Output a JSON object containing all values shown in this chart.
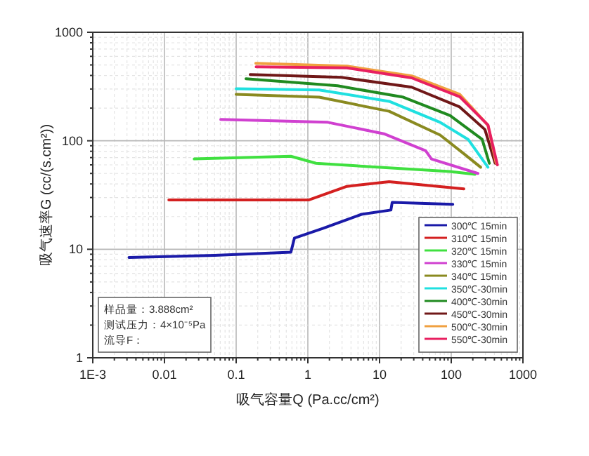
{
  "chart_data": {
    "type": "line",
    "xlabel": "吸气容量Q (Pa.cc/cm²)",
    "ylabel": "吸气速率G (cc/(s.cm²))",
    "log": "xy",
    "grid": true,
    "legend": "bottom right",
    "xlim": [
      0.001,
      1000
    ],
    "ylim": [
      1,
      1000
    ],
    "xticks": [
      {
        "value": 0.001,
        "label": "1E-3"
      },
      0.01,
      0.1,
      1,
      10,
      100,
      1000
    ],
    "yticks": [
      1,
      10,
      100,
      1000
    ],
    "annotations": [
      "样品量：3.888cm²",
      "测试压力：4×10⁻⁵Pa",
      "流导F："
    ],
    "series": [
      {
        "name": "300℃ 15min",
        "color": "#1a1aa8",
        "x": [
          0.0032,
          0.05,
          0.58,
          0.65,
          1.64,
          5.6,
          14.4,
          15,
          105
        ],
        "values": [
          8.4,
          8.8,
          9.4,
          12.7,
          15.6,
          21,
          23,
          27,
          26
        ]
      },
      {
        "name": "310℃ 15min",
        "color": "#d42020",
        "x": [
          0.0115,
          1.04,
          3.5,
          13.6,
          150
        ],
        "values": [
          28.5,
          28.5,
          38,
          42,
          36
        ]
      },
      {
        "name": "320℃ 15min",
        "color": "#40e040",
        "x": [
          0.026,
          0.58,
          1.3,
          96,
          215
        ],
        "values": [
          68,
          72,
          62,
          52,
          49
        ]
      },
      {
        "name": "330℃ 15min",
        "color": "#d040d0",
        "x": [
          0.061,
          1.9,
          11.5,
          44,
          53,
          236
        ],
        "values": [
          157,
          148,
          116,
          81,
          68,
          50
        ]
      },
      {
        "name": "340℃ 15min",
        "color": "#8a8a20",
        "x": [
          0.1,
          1.44,
          13.6,
          70,
          150,
          257
        ],
        "values": [
          268,
          252,
          187,
          113,
          76,
          57
        ]
      },
      {
        "name": "350℃-30min",
        "color": "#20e0e0",
        "x": [
          0.1,
          1.44,
          13.6,
          70,
          172,
          325
        ],
        "values": [
          302,
          294,
          231,
          148,
          103,
          57
        ]
      },
      {
        "name": "400℃-30min",
        "color": "#208a20",
        "x": [
          0.137,
          2.6,
          21.5,
          96,
          270,
          340
        ],
        "values": [
          373,
          321,
          252,
          171,
          103,
          62
        ]
      },
      {
        "name": "450℃-30min",
        "color": "#701818",
        "x": [
          0.157,
          2.95,
          28,
          131,
          295,
          410
        ],
        "values": [
          408,
          384,
          312,
          205,
          127,
          62
        ]
      },
      {
        "name": "500℃-30min",
        "color": "#f0a040",
        "x": [
          0.188,
          3.5,
          28,
          131,
          325,
          424
        ],
        "values": [
          518,
          488,
          396,
          268,
          139,
          62
        ]
      },
      {
        "name": "550℃-30min",
        "color": "#e82060",
        "x": [
          0.19,
          3.5,
          28,
          131,
          325,
          440
        ],
        "values": [
          480,
          470,
          380,
          255,
          140,
          60
        ]
      }
    ]
  }
}
